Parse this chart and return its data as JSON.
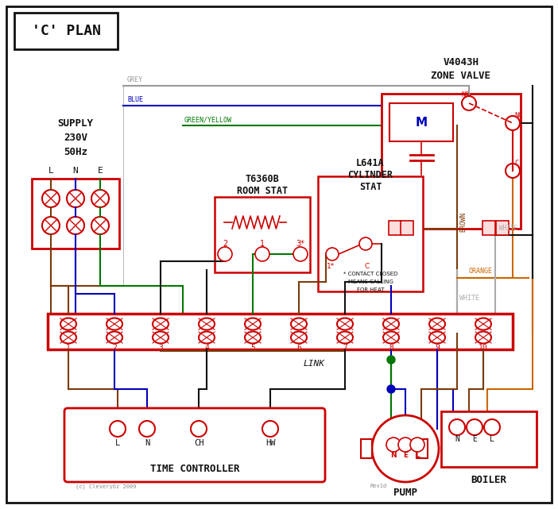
{
  "title": "'C' PLAN",
  "bg_color": "#ffffff",
  "red": "#cc0000",
  "blue": "#0000bb",
  "green": "#007700",
  "brown": "#7B3B0A",
  "grey": "#999999",
  "orange": "#cc6600",
  "black": "#111111",
  "white_wire": "#aaaaaa",
  "supply_text": [
    "SUPPLY",
    "230V",
    "50Hz"
  ],
  "zone_valve_title": [
    "V4043H",
    "ZONE VALVE"
  ],
  "room_stat_title": [
    "T6360B",
    "ROOM STAT"
  ],
  "cylinder_stat_title": [
    "L641A",
    "CYLINDER",
    "STAT"
  ],
  "time_controller_label": "TIME CONTROLLER",
  "pump_label": "PUMP",
  "boiler_label": "BOILER",
  "link_label": "LINK"
}
